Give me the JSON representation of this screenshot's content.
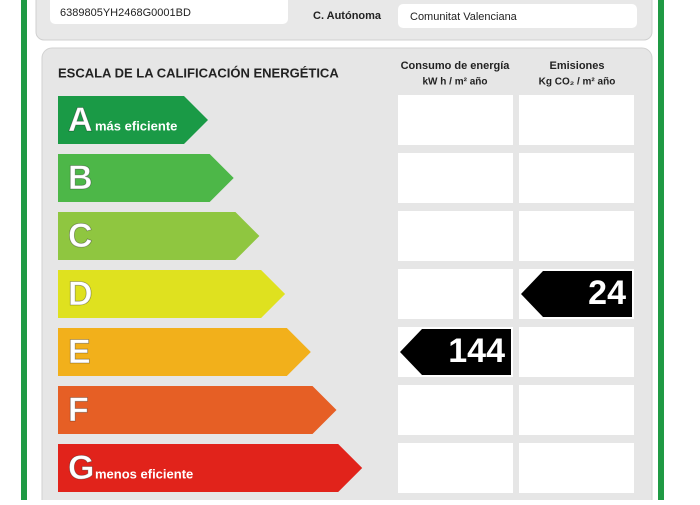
{
  "header": {
    "reference": "6389805YH2468G0001BD",
    "region_label": "C. Autónoma",
    "region": "Comunitat Valenciana"
  },
  "scale": {
    "title": "ESCALA DE LA CALIFICACIÓN ENERGÉTICA",
    "columns": [
      {
        "title": "Consumo de energía",
        "unit": "kW h / m² año"
      },
      {
        "title": "Emisiones",
        "unit": "Kg CO₂ / m² año"
      }
    ],
    "rows": [
      {
        "letter": "A",
        "note": "más eficiente",
        "color": "#1a9a46"
      },
      {
        "letter": "B",
        "color": "#4db748"
      },
      {
        "letter": "C",
        "color": "#8fc640"
      },
      {
        "letter": "D",
        "color": "#dfe11f",
        "emissions": 24
      },
      {
        "letter": "E",
        "color": "#f2b01b",
        "consumption": 144
      },
      {
        "letter": "F",
        "color": "#e65f25"
      },
      {
        "letter": "G",
        "note": "menos eficiente",
        "color": "#e1231b"
      }
    ]
  }
}
